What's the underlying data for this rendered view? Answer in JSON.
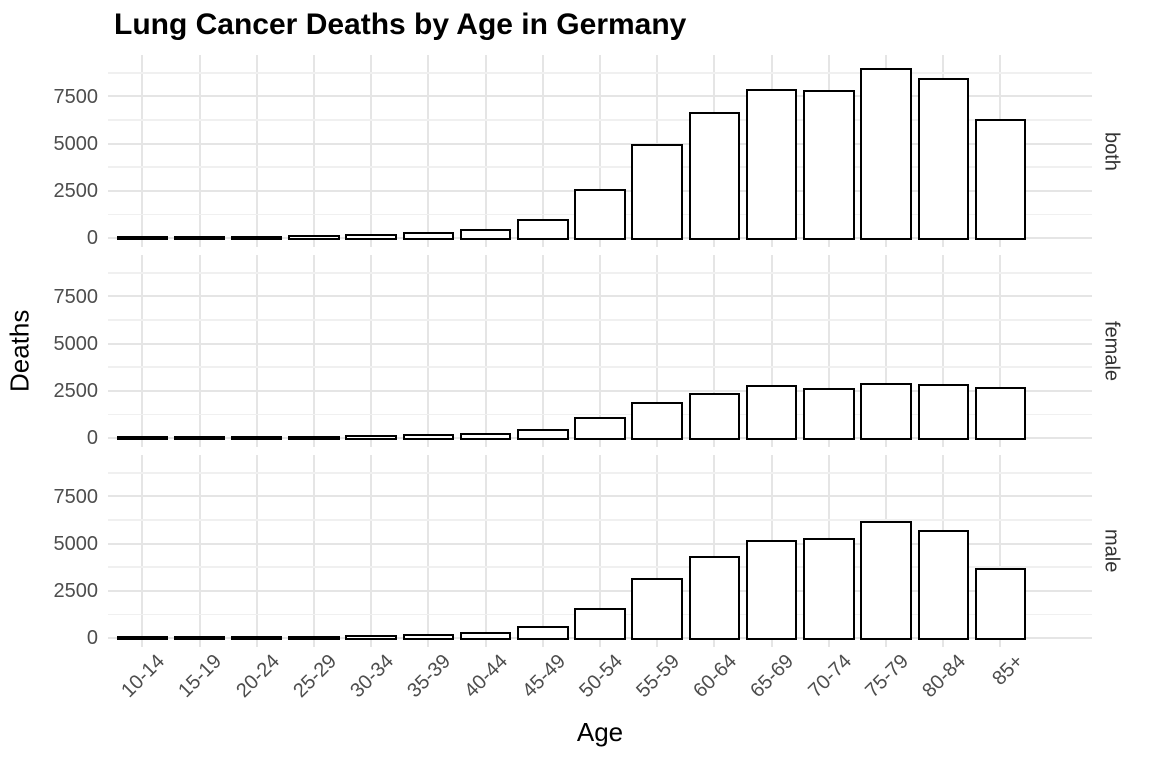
{
  "chart_data": {
    "type": "bar",
    "title": "Lung Cancer Deaths by Age in Germany",
    "xlabel": "Age",
    "ylabel": "Deaths",
    "facet_labels": [
      "both",
      "female",
      "male"
    ],
    "facet_position": "right-strip-rotated",
    "categories": [
      "10-14",
      "15-19",
      "20-24",
      "25-29",
      "30-34",
      "35-39",
      "40-44",
      "45-49",
      "50-54",
      "55-59",
      "60-64",
      "65-69",
      "70-74",
      "75-79",
      "80-84",
      "85+"
    ],
    "series": [
      {
        "name": "both",
        "values": [
          10,
          15,
          20,
          30,
          90,
          200,
          380,
          900,
          2500,
          4850,
          6550,
          7800,
          7750,
          8900,
          8350,
          6200
        ]
      },
      {
        "name": "female",
        "values": [
          5,
          5,
          10,
          15,
          40,
          80,
          150,
          350,
          1000,
          1800,
          2300,
          2700,
          2550,
          2800,
          2750,
          2600
        ]
      },
      {
        "name": "male",
        "values": [
          5,
          10,
          10,
          15,
          50,
          120,
          230,
          550,
          1500,
          3050,
          4250,
          5100,
          5200,
          6100,
          5600,
          3600
        ]
      }
    ],
    "yticks": [
      0,
      2500,
      5000,
      7500
    ],
    "ytick_labels": [
      "0",
      "2500",
      "5000",
      "7500"
    ],
    "minor_ticks": [
      1250,
      3750,
      6250,
      8750
    ],
    "ylim": [
      -480,
      9700
    ],
    "grid": true,
    "legend_position": "none",
    "bar_fill": "#ffffff",
    "bar_stroke": "#000000",
    "grid_major_color": "#e5e5e5",
    "grid_minor_color": "#f0f0f0",
    "axis_text_color": "#4d4d4d",
    "strip_text_color": "#333333"
  }
}
